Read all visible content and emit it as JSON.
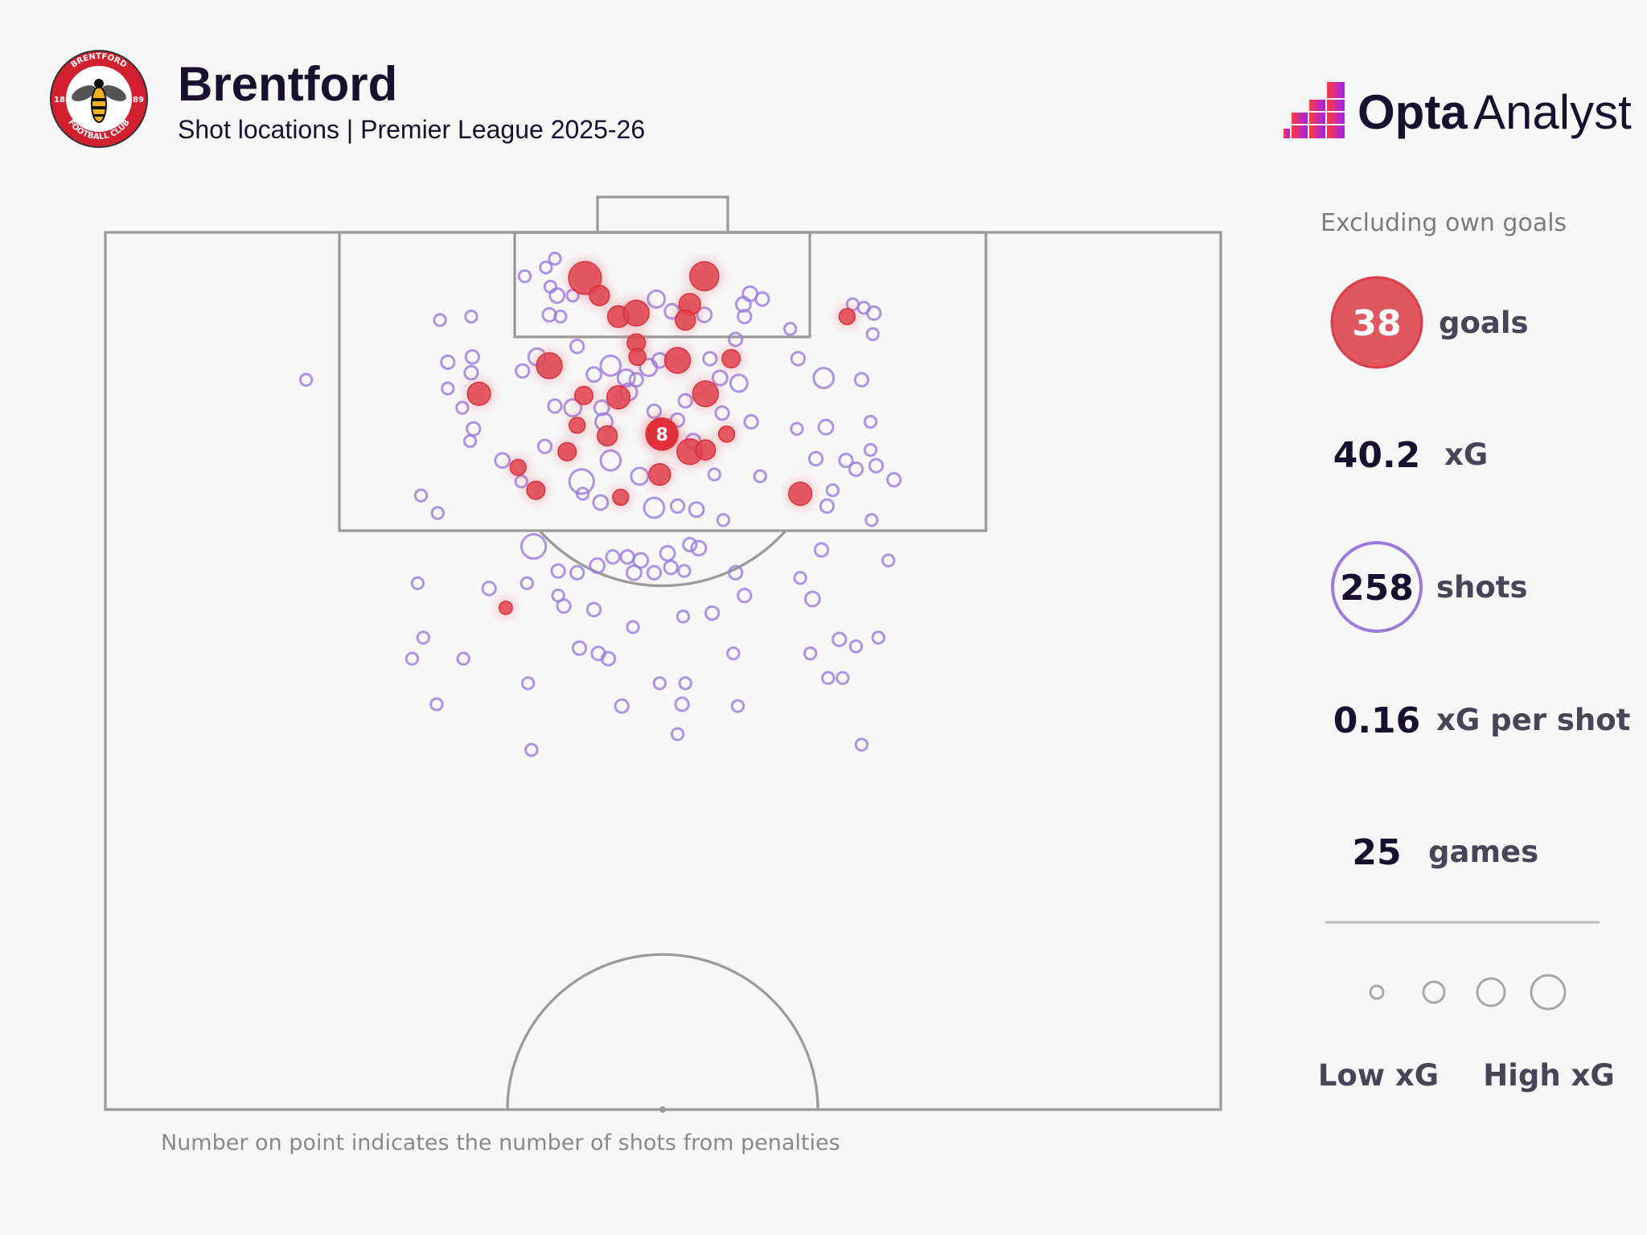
{
  "header": {
    "title": "Brentford",
    "subtitle": "Shot locations | Premier League 2025-26",
    "crest_text": {
      "top": "BRENTFORD",
      "bottom": "FOOTBALL CLUB",
      "left": "18",
      "right": "89"
    },
    "brand": {
      "bold": "Opta",
      "regular": "Analyst"
    }
  },
  "footnote": "Number on point indicates the number of shots from penalties",
  "panel": {
    "note": "Excluding own goals",
    "stats": [
      {
        "value": "38",
        "label": "goals"
      },
      {
        "value": "40.2",
        "label": "xG"
      },
      {
        "value": "258",
        "label": "shots"
      },
      {
        "value": "0.16",
        "label": "xG per shot"
      },
      {
        "value": "25",
        "label": "games"
      }
    ],
    "legend": {
      "low": "Low xG",
      "high": "High xG",
      "sizes_xg": [
        0.03,
        0.15,
        0.35,
        0.6
      ]
    }
  },
  "colors": {
    "goal": "#e0434f",
    "shot": "#9b7bdc",
    "lines": "#9b9b9b",
    "text": "#1a0f2e"
  },
  "chart_data": {
    "type": "scatter",
    "title": "Brentford shot locations, Premier League 2025-26",
    "coordinate_system": "half pitch: w = across width 0-100 (left to right), d = distance from goal line 0-50 (Opta units)",
    "fields": [
      "w",
      "d",
      "xg"
    ],
    "penalty": {
      "w": 49.9,
      "d": 11.5,
      "xg": 0.79,
      "shots": "8",
      "outcome": "goal"
    },
    "goals": [
      [
        43.0,
        2.6,
        0.75
      ],
      [
        53.7,
        2.5,
        0.55
      ],
      [
        44.3,
        3.6,
        0.2
      ],
      [
        46.0,
        4.8,
        0.25
      ],
      [
        47.6,
        4.6,
        0.4
      ],
      [
        52.4,
        4.1,
        0.25
      ],
      [
        52.0,
        5.0,
        0.2
      ],
      [
        47.6,
        6.3,
        0.15
      ],
      [
        47.7,
        7.1,
        0.12
      ],
      [
        39.8,
        7.6,
        0.4
      ],
      [
        51.3,
        7.3,
        0.4
      ],
      [
        56.1,
        7.2,
        0.15
      ],
      [
        33.5,
        9.2,
        0.3
      ],
      [
        42.9,
        9.3,
        0.15
      ],
      [
        46.0,
        9.4,
        0.3
      ],
      [
        53.8,
        9.2,
        0.4
      ],
      [
        42.3,
        11.0,
        0.1
      ],
      [
        45.0,
        11.6,
        0.2
      ],
      [
        41.4,
        12.5,
        0.15
      ],
      [
        52.4,
        12.5,
        0.4
      ],
      [
        53.8,
        12.4,
        0.2
      ],
      [
        55.7,
        11.5,
        0.1
      ],
      [
        37.0,
        13.4,
        0.1
      ],
      [
        49.7,
        13.8,
        0.25
      ],
      [
        38.6,
        14.7,
        0.15
      ],
      [
        46.2,
        15.1,
        0.1
      ],
      [
        62.3,
        14.9,
        0.3
      ],
      [
        66.5,
        4.8,
        0.1
      ],
      [
        35.9,
        21.4,
        0.05
      ]
    ],
    "shots": [
      [
        18.0,
        8.4,
        0.03
      ],
      [
        30.0,
        5.0,
        0.03
      ],
      [
        32.8,
        4.8,
        0.03
      ],
      [
        37.6,
        2.5,
        0.03
      ],
      [
        39.5,
        2.0,
        0.03
      ],
      [
        40.3,
        1.5,
        0.03
      ],
      [
        39.9,
        3.1,
        0.03
      ],
      [
        40.5,
        3.6,
        0.07
      ],
      [
        41.9,
        3.6,
        0.03
      ],
      [
        39.8,
        4.7,
        0.05
      ],
      [
        40.8,
        4.8,
        0.03
      ],
      [
        38.7,
        7.1,
        0.12
      ],
      [
        42.3,
        6.5,
        0.05
      ],
      [
        37.4,
        7.9,
        0.05
      ],
      [
        30.7,
        7.4,
        0.05
      ],
      [
        32.9,
        7.1,
        0.05
      ],
      [
        32.8,
        8.0,
        0.05
      ],
      [
        30.7,
        8.9,
        0.03
      ],
      [
        32.0,
        10.0,
        0.03
      ],
      [
        33.0,
        11.2,
        0.05
      ],
      [
        32.7,
        11.9,
        0.03
      ],
      [
        35.6,
        13.0,
        0.07
      ],
      [
        37.3,
        14.2,
        0.03
      ],
      [
        39.4,
        12.2,
        0.05
      ],
      [
        40.3,
        9.9,
        0.05
      ],
      [
        41.9,
        10.0,
        0.12
      ],
      [
        43.8,
        8.1,
        0.07
      ],
      [
        45.3,
        7.6,
        0.2
      ],
      [
        46.7,
        8.3,
        0.12
      ],
      [
        44.5,
        10.0,
        0.07
      ],
      [
        44.7,
        10.8,
        0.12
      ],
      [
        45.3,
        13.0,
        0.2
      ],
      [
        42.7,
        14.2,
        0.35
      ],
      [
        44.4,
        15.4,
        0.07
      ],
      [
        42.8,
        14.9,
        0.03
      ],
      [
        47.9,
        13.9,
        0.12
      ],
      [
        49.2,
        15.7,
        0.2
      ],
      [
        51.3,
        15.6,
        0.05
      ],
      [
        53.0,
        15.8,
        0.07
      ],
      [
        55.4,
        16.4,
        0.03
      ],
      [
        54.6,
        13.8,
        0.03
      ],
      [
        58.7,
        13.9,
        0.03
      ],
      [
        57.9,
        10.8,
        0.05
      ],
      [
        55.3,
        10.3,
        0.05
      ],
      [
        52.7,
        11.9,
        0.07
      ],
      [
        51.3,
        10.7,
        0.05
      ],
      [
        49.2,
        10.2,
        0.05
      ],
      [
        52.0,
        9.6,
        0.05
      ],
      [
        55.1,
        8.3,
        0.07
      ],
      [
        56.8,
        8.6,
        0.12
      ],
      [
        54.2,
        7.2,
        0.05
      ],
      [
        56.5,
        6.1,
        0.05
      ],
      [
        49.4,
        3.8,
        0.12
      ],
      [
        50.8,
        4.5,
        0.07
      ],
      [
        49.7,
        7.3,
        0.07
      ],
      [
        48.7,
        7.7,
        0.12
      ],
      [
        47.6,
        8.4,
        0.05
      ],
      [
        46.9,
        9.1,
        0.12
      ],
      [
        53.7,
        4.7,
        0.07
      ],
      [
        57.8,
        3.5,
        0.07
      ],
      [
        58.9,
        3.8,
        0.05
      ],
      [
        57.2,
        4.1,
        0.07
      ],
      [
        57.3,
        4.8,
        0.05
      ],
      [
        61.4,
        5.5,
        0.03
      ],
      [
        64.4,
        8.3,
        0.2
      ],
      [
        62.1,
        7.2,
        0.05
      ],
      [
        67.8,
        8.4,
        0.05
      ],
      [
        62.0,
        11.2,
        0.03
      ],
      [
        64.6,
        11.1,
        0.07
      ],
      [
        68.6,
        10.8,
        0.03
      ],
      [
        66.4,
        13.0,
        0.05
      ],
      [
        63.7,
        12.9,
        0.05
      ],
      [
        67.3,
        13.5,
        0.05
      ],
      [
        68.6,
        12.4,
        0.03
      ],
      [
        69.1,
        13.3,
        0.05
      ],
      [
        70.7,
        14.1,
        0.05
      ],
      [
        65.2,
        14.7,
        0.03
      ],
      [
        64.7,
        15.6,
        0.05
      ],
      [
        68.7,
        16.4,
        0.03
      ],
      [
        67.0,
        4.1,
        0.03
      ],
      [
        68.0,
        4.3,
        0.03
      ],
      [
        68.9,
        4.6,
        0.05
      ],
      [
        68.8,
        5.8,
        0.03
      ],
      [
        28.3,
        15.0,
        0.03
      ],
      [
        29.8,
        16.0,
        0.03
      ],
      [
        38.4,
        17.9,
        0.35
      ],
      [
        40.6,
        19.3,
        0.05
      ],
      [
        42.3,
        19.4,
        0.05
      ],
      [
        44.1,
        19.0,
        0.07
      ],
      [
        45.5,
        18.5,
        0.05
      ],
      [
        46.8,
        18.5,
        0.05
      ],
      [
        48.0,
        18.7,
        0.07
      ],
      [
        47.4,
        19.4,
        0.07
      ],
      [
        49.2,
        19.4,
        0.05
      ],
      [
        50.4,
        18.3,
        0.07
      ],
      [
        50.7,
        19.1,
        0.05
      ],
      [
        51.9,
        19.3,
        0.03
      ],
      [
        52.4,
        17.8,
        0.05
      ],
      [
        53.2,
        18.0,
        0.07
      ],
      [
        56.5,
        19.4,
        0.05
      ],
      [
        64.2,
        18.1,
        0.05
      ],
      [
        70.2,
        18.7,
        0.03
      ],
      [
        62.3,
        19.7,
        0.03
      ],
      [
        28.0,
        20.0,
        0.03
      ],
      [
        34.4,
        20.3,
        0.05
      ],
      [
        37.8,
        20.0,
        0.03
      ],
      [
        40.6,
        20.7,
        0.03
      ],
      [
        41.1,
        21.3,
        0.05
      ],
      [
        43.8,
        21.5,
        0.05
      ],
      [
        47.3,
        22.5,
        0.03
      ],
      [
        51.8,
        21.9,
        0.03
      ],
      [
        54.4,
        21.7,
        0.05
      ],
      [
        57.3,
        20.7,
        0.05
      ],
      [
        63.4,
        20.9,
        0.07
      ],
      [
        28.5,
        23.1,
        0.03
      ],
      [
        27.5,
        24.3,
        0.03
      ],
      [
        32.1,
        24.3,
        0.03
      ],
      [
        42.5,
        23.7,
        0.05
      ],
      [
        44.2,
        24.0,
        0.05
      ],
      [
        45.1,
        24.3,
        0.05
      ],
      [
        37.9,
        25.7,
        0.03
      ],
      [
        49.7,
        25.7,
        0.03
      ],
      [
        52.0,
        25.7,
        0.03
      ],
      [
        56.3,
        24.0,
        0.03
      ],
      [
        63.2,
        24.0,
        0.03
      ],
      [
        65.8,
        23.2,
        0.05
      ],
      [
        67.3,
        23.6,
        0.03
      ],
      [
        69.3,
        23.1,
        0.03
      ],
      [
        64.8,
        25.4,
        0.03
      ],
      [
        66.1,
        25.4,
        0.03
      ],
      [
        29.7,
        26.9,
        0.03
      ],
      [
        46.3,
        27.0,
        0.05
      ],
      [
        51.7,
        26.9,
        0.05
      ],
      [
        56.7,
        27.0,
        0.03
      ],
      [
        51.3,
        28.6,
        0.03
      ],
      [
        38.2,
        29.5,
        0.03
      ],
      [
        67.8,
        29.2,
        0.03
      ]
    ],
    "xlim": [
      0,
      100
    ],
    "ylim": [
      0,
      50
    ],
    "grid": false,
    "legend": "right"
  }
}
